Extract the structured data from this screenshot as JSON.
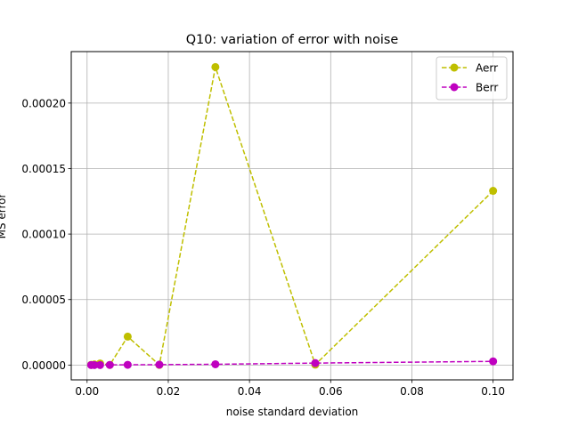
{
  "chart_data": {
    "type": "line",
    "title": "Q10: variation of error with noise",
    "xlabel": "noise standard deviation",
    "ylabel": "MS error",
    "xlim": [
      -0.0039,
      0.1049
    ],
    "ylim": [
      -1.13e-05,
      0.0002393
    ],
    "xticks": [
      0.0,
      0.02,
      0.04,
      0.06,
      0.08,
      0.1
    ],
    "xtick_labels": [
      "0.00",
      "0.02",
      "0.04",
      "0.06",
      "0.08",
      "0.10"
    ],
    "yticks": [
      0.0,
      5e-05,
      0.0001,
      0.00015,
      0.0002
    ],
    "ytick_labels": [
      "0.00000",
      "0.00005",
      "0.00010",
      "0.00015",
      "0.00020"
    ],
    "grid": true,
    "legend_position": "top-right",
    "series": [
      {
        "name": "Aerr",
        "color": "#bfbf00",
        "line_style": "dashed",
        "marker": "circle",
        "x": [
          0.001,
          0.0018,
          0.0032,
          0.0056,
          0.01,
          0.0178,
          0.0316,
          0.0562,
          0.1
        ],
        "y": [
          2e-07,
          5e-07,
          1.2e-06,
          1e-07,
          2.17e-05,
          1e-07,
          0.0002275,
          3e-07,
          0.000133
        ]
      },
      {
        "name": "Berr",
        "color": "#bf00bf",
        "line_style": "dashed",
        "marker": "circle",
        "x": [
          0.001,
          0.0018,
          0.0032,
          0.0056,
          0.01,
          0.0178,
          0.0316,
          0.0562,
          0.1
        ],
        "y": [
          0.0,
          0.0,
          0.0,
          1e-07,
          2e-07,
          3e-07,
          6e-07,
          1.5e-06,
          2.8e-06
        ]
      }
    ]
  }
}
